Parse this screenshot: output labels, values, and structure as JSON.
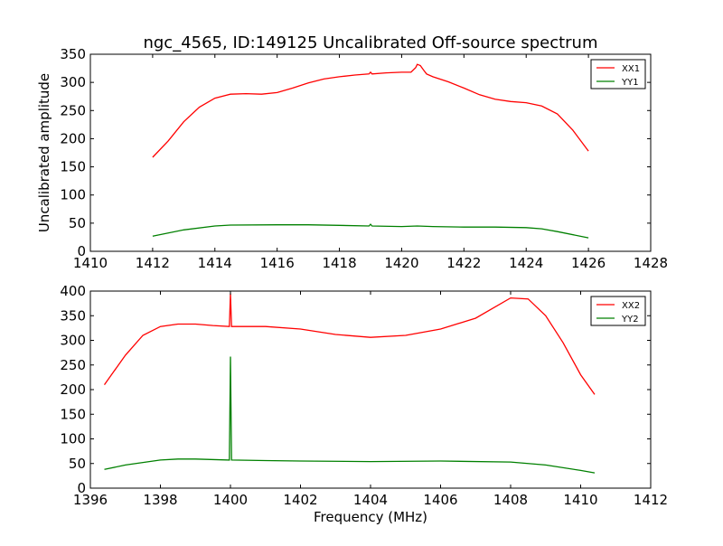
{
  "chart_data": [
    {
      "type": "line",
      "title": "ngc_4565, ID:149125 Uncalibrated Off-source spectrum",
      "xlabel": "",
      "ylabel": "Uncalibrated amplitude",
      "xlim": [
        1410,
        1428
      ],
      "ylim": [
        0,
        350
      ],
      "xticks": [
        1410,
        1412,
        1414,
        1416,
        1418,
        1420,
        1422,
        1424,
        1426,
        1428
      ],
      "yticks": [
        0,
        50,
        100,
        150,
        200,
        250,
        300,
        350
      ],
      "legend": "top-right",
      "series": [
        {
          "name": "XX1",
          "color": "#ff0000",
          "x": [
            1412,
            1412.5,
            1413,
            1413.5,
            1414,
            1414.5,
            1415,
            1415.5,
            1416,
            1416.5,
            1417,
            1417.5,
            1418,
            1418.5,
            1418.95,
            1419,
            1419.05,
            1419.5,
            1420,
            1420.3,
            1420.45,
            1420.5,
            1420.6,
            1420.7,
            1420.8,
            1421,
            1421.5,
            1422,
            1422.5,
            1423,
            1423.5,
            1424,
            1424.5,
            1425,
            1425.5,
            1426
          ],
          "y": [
            167,
            196,
            230,
            256,
            272,
            279,
            280,
            279,
            282,
            290,
            299,
            306,
            310,
            313,
            315,
            318,
            315,
            317,
            318,
            318,
            326,
            332,
            330,
            322,
            315,
            310,
            301,
            290,
            278,
            270,
            266,
            264,
            258,
            244,
            215,
            178
          ]
        },
        {
          "name": "YY1",
          "color": "#008000",
          "x": [
            1412,
            1413,
            1414,
            1414.5,
            1416,
            1417,
            1418,
            1418.95,
            1419,
            1419.05,
            1420,
            1420.5,
            1421,
            1422,
            1423,
            1424,
            1424.5,
            1425,
            1426
          ],
          "y": [
            27,
            38,
            45,
            46.5,
            47,
            47,
            46,
            45,
            48,
            45,
            44,
            45,
            44,
            43,
            43,
            42,
            40,
            35,
            24
          ]
        }
      ]
    },
    {
      "type": "line",
      "title": "",
      "xlabel": "Frequency (MHz)",
      "ylabel": "",
      "xlim": [
        1396,
        1412
      ],
      "ylim": [
        0,
        400
      ],
      "xticks": [
        1396,
        1398,
        1400,
        1402,
        1404,
        1406,
        1408,
        1410,
        1412
      ],
      "yticks": [
        0,
        50,
        100,
        150,
        200,
        250,
        300,
        350,
        400
      ],
      "legend": "top-right",
      "series": [
        {
          "name": "XX2",
          "color": "#ff0000",
          "x": [
            1396.4,
            1397,
            1397.5,
            1398,
            1398.5,
            1399,
            1399.5,
            1399.97,
            1400,
            1400.03,
            1401,
            1402,
            1403,
            1404,
            1405,
            1406,
            1407,
            1408,
            1408.5,
            1409,
            1409.5,
            1410,
            1410.4
          ],
          "y": [
            210,
            270,
            310,
            328,
            333,
            333,
            330,
            328,
            395,
            328,
            328,
            323,
            312,
            306,
            310,
            323,
            345,
            386,
            384,
            350,
            295,
            230,
            190
          ]
        },
        {
          "name": "YY2",
          "color": "#008000",
          "x": [
            1396.4,
            1397,
            1398,
            1398.5,
            1399,
            1399.97,
            1400,
            1400.03,
            1401,
            1402,
            1404,
            1406,
            1408,
            1409,
            1410,
            1410.4
          ],
          "y": [
            38,
            47,
            57,
            59,
            59,
            57,
            267,
            57,
            56,
            55,
            54,
            55,
            53,
            47,
            36,
            31
          ]
        }
      ]
    }
  ]
}
